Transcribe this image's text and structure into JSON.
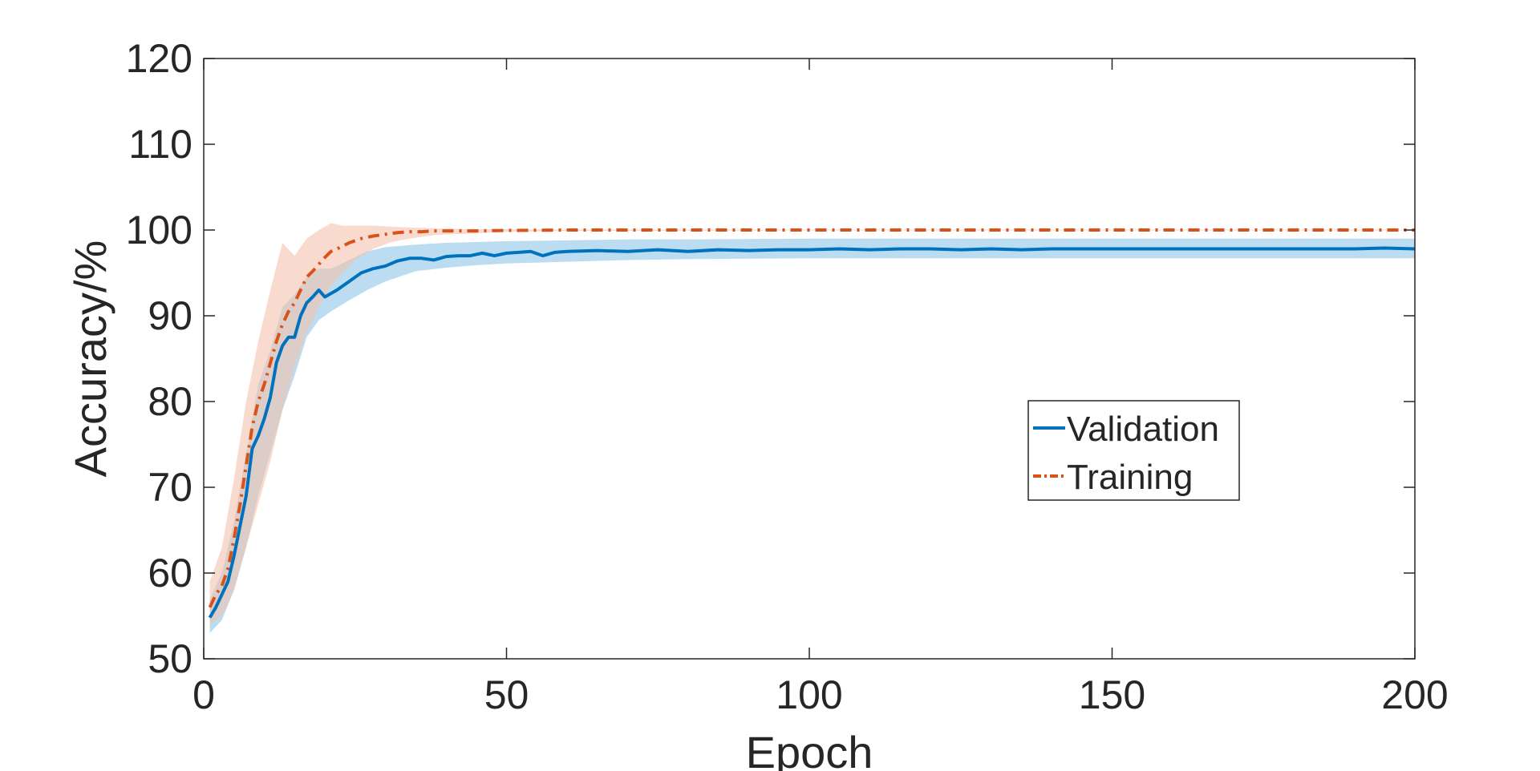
{
  "chart_data": {
    "type": "line",
    "title": "",
    "xlabel": "Epoch",
    "ylabel": "Accuracy/%",
    "xlim": [
      0,
      200
    ],
    "ylim": [
      50,
      120
    ],
    "xticks": [
      0,
      50,
      100,
      150,
      200
    ],
    "yticks": [
      50,
      60,
      70,
      80,
      90,
      100,
      110,
      120
    ],
    "grid": false,
    "legend_position": "right-middle",
    "series": [
      {
        "name": "Validation",
        "color": "#0072BD",
        "band_color": "#8FC6E8",
        "line_style": "solid",
        "points": [
          [
            1,
            54.8
          ],
          [
            2,
            56.0
          ],
          [
            3,
            57.5
          ],
          [
            4,
            59.0
          ],
          [
            5,
            62.0
          ],
          [
            6,
            65.5
          ],
          [
            7,
            69.0
          ],
          [
            8,
            74.5
          ],
          [
            9,
            76.0
          ],
          [
            10,
            78.0
          ],
          [
            11,
            80.5
          ],
          [
            12,
            84.5
          ],
          [
            13,
            86.5
          ],
          [
            14,
            87.5
          ],
          [
            15,
            87.5
          ],
          [
            16,
            90.0
          ],
          [
            17,
            91.5
          ],
          [
            18,
            92.2
          ],
          [
            19,
            93.0
          ],
          [
            20,
            92.2
          ],
          [
            22,
            93.0
          ],
          [
            24,
            94.0
          ],
          [
            26,
            95.0
          ],
          [
            28,
            95.5
          ],
          [
            30,
            95.8
          ],
          [
            32,
            96.4
          ],
          [
            34,
            96.7
          ],
          [
            36,
            96.7
          ],
          [
            38,
            96.5
          ],
          [
            40,
            96.9
          ],
          [
            42,
            97.0
          ],
          [
            44,
            97.0
          ],
          [
            46,
            97.3
          ],
          [
            48,
            97.0
          ],
          [
            50,
            97.3
          ],
          [
            52,
            97.4
          ],
          [
            54,
            97.5
          ],
          [
            56,
            97.0
          ],
          [
            58,
            97.4
          ],
          [
            60,
            97.5
          ],
          [
            65,
            97.6
          ],
          [
            70,
            97.5
          ],
          [
            75,
            97.7
          ],
          [
            80,
            97.5
          ],
          [
            85,
            97.7
          ],
          [
            90,
            97.6
          ],
          [
            95,
            97.7
          ],
          [
            100,
            97.7
          ],
          [
            105,
            97.8
          ],
          [
            110,
            97.7
          ],
          [
            115,
            97.8
          ],
          [
            120,
            97.8
          ],
          [
            125,
            97.7
          ],
          [
            130,
            97.8
          ],
          [
            135,
            97.7
          ],
          [
            140,
            97.8
          ],
          [
            145,
            97.8
          ],
          [
            150,
            97.8
          ],
          [
            155,
            97.8
          ],
          [
            160,
            97.8
          ],
          [
            165,
            97.8
          ],
          [
            170,
            97.8
          ],
          [
            175,
            97.8
          ],
          [
            180,
            97.8
          ],
          [
            185,
            97.8
          ],
          [
            190,
            97.8
          ],
          [
            195,
            97.9
          ],
          [
            200,
            97.8
          ]
        ],
        "band": [
          [
            1,
            53.0,
            57.0
          ],
          [
            3,
            54.5,
            60.0
          ],
          [
            5,
            58.0,
            66.0
          ],
          [
            7,
            63.0,
            74.0
          ],
          [
            9,
            69.0,
            82.0
          ],
          [
            11,
            74.0,
            86.0
          ],
          [
            13,
            79.0,
            91.0
          ],
          [
            15,
            83.0,
            92.5
          ],
          [
            17,
            87.5,
            94.5
          ],
          [
            19,
            89.5,
            95.5
          ],
          [
            21,
            90.5,
            95.5
          ],
          [
            24,
            91.8,
            96.5
          ],
          [
            27,
            93.0,
            97.5
          ],
          [
            30,
            94.0,
            98.0
          ],
          [
            35,
            95.2,
            98.3
          ],
          [
            40,
            95.6,
            98.5
          ],
          [
            45,
            95.9,
            98.6
          ],
          [
            50,
            96.1,
            98.7
          ],
          [
            60,
            96.3,
            98.8
          ],
          [
            70,
            96.5,
            98.9
          ],
          [
            80,
            96.6,
            98.9
          ],
          [
            100,
            96.7,
            99.0
          ],
          [
            120,
            96.7,
            99.0
          ],
          [
            150,
            96.7,
            99.0
          ],
          [
            180,
            96.7,
            99.0
          ],
          [
            200,
            96.7,
            99.0
          ]
        ]
      },
      {
        "name": "Training",
        "color": "#D95319",
        "band_color": "#F4C3AE",
        "line_style": "dash-dot",
        "points": [
          [
            1,
            56.0
          ],
          [
            2,
            57.5
          ],
          [
            3,
            58.5
          ],
          [
            4,
            60.5
          ],
          [
            5,
            64.0
          ],
          [
            6,
            68.0
          ],
          [
            7,
            72.5
          ],
          [
            8,
            77.0
          ],
          [
            9,
            80.0
          ],
          [
            10,
            82.0
          ],
          [
            11,
            84.5
          ],
          [
            12,
            87.0
          ],
          [
            13,
            89.0
          ],
          [
            14,
            90.5
          ],
          [
            15,
            91.5
          ],
          [
            16,
            93.0
          ],
          [
            17,
            94.5
          ],
          [
            18,
            95.2
          ],
          [
            19,
            96.0
          ],
          [
            20,
            96.8
          ],
          [
            21,
            97.5
          ],
          [
            22,
            97.8
          ],
          [
            24,
            98.5
          ],
          [
            26,
            99.0
          ],
          [
            28,
            99.3
          ],
          [
            30,
            99.5
          ],
          [
            32,
            99.7
          ],
          [
            34,
            99.8
          ],
          [
            36,
            99.8
          ],
          [
            38,
            99.9
          ],
          [
            40,
            99.9
          ],
          [
            45,
            99.9
          ],
          [
            50,
            99.95
          ],
          [
            60,
            100.0
          ],
          [
            80,
            100.0
          ],
          [
            100,
            100.0
          ],
          [
            120,
            100.0
          ],
          [
            150,
            100.0
          ],
          [
            180,
            100.0
          ],
          [
            200,
            100.0
          ]
        ],
        "band": [
          [
            1,
            54.0,
            59.0
          ],
          [
            3,
            55.0,
            63.0
          ],
          [
            5,
            58.0,
            71.0
          ],
          [
            7,
            63.0,
            80.0
          ],
          [
            9,
            68.0,
            87.0
          ],
          [
            11,
            73.0,
            93.0
          ],
          [
            13,
            79.0,
            98.5
          ],
          [
            15,
            84.0,
            97.0
          ],
          [
            17,
            88.0,
            99.0
          ],
          [
            19,
            91.0,
            100.0
          ],
          [
            21,
            93.5,
            100.8
          ],
          [
            23,
            95.0,
            100.5
          ],
          [
            25,
            96.5,
            100.5
          ],
          [
            28,
            97.8,
            100.5
          ],
          [
            31,
            98.6,
            100.4
          ],
          [
            34,
            99.0,
            100.3
          ],
          [
            38,
            99.4,
            100.2
          ],
          [
            45,
            99.6,
            100.1
          ],
          [
            50,
            99.8,
            100.1
          ],
          [
            60,
            99.9,
            100.05
          ],
          [
            100,
            99.95,
            100.05
          ],
          [
            200,
            99.95,
            100.05
          ]
        ]
      }
    ]
  }
}
